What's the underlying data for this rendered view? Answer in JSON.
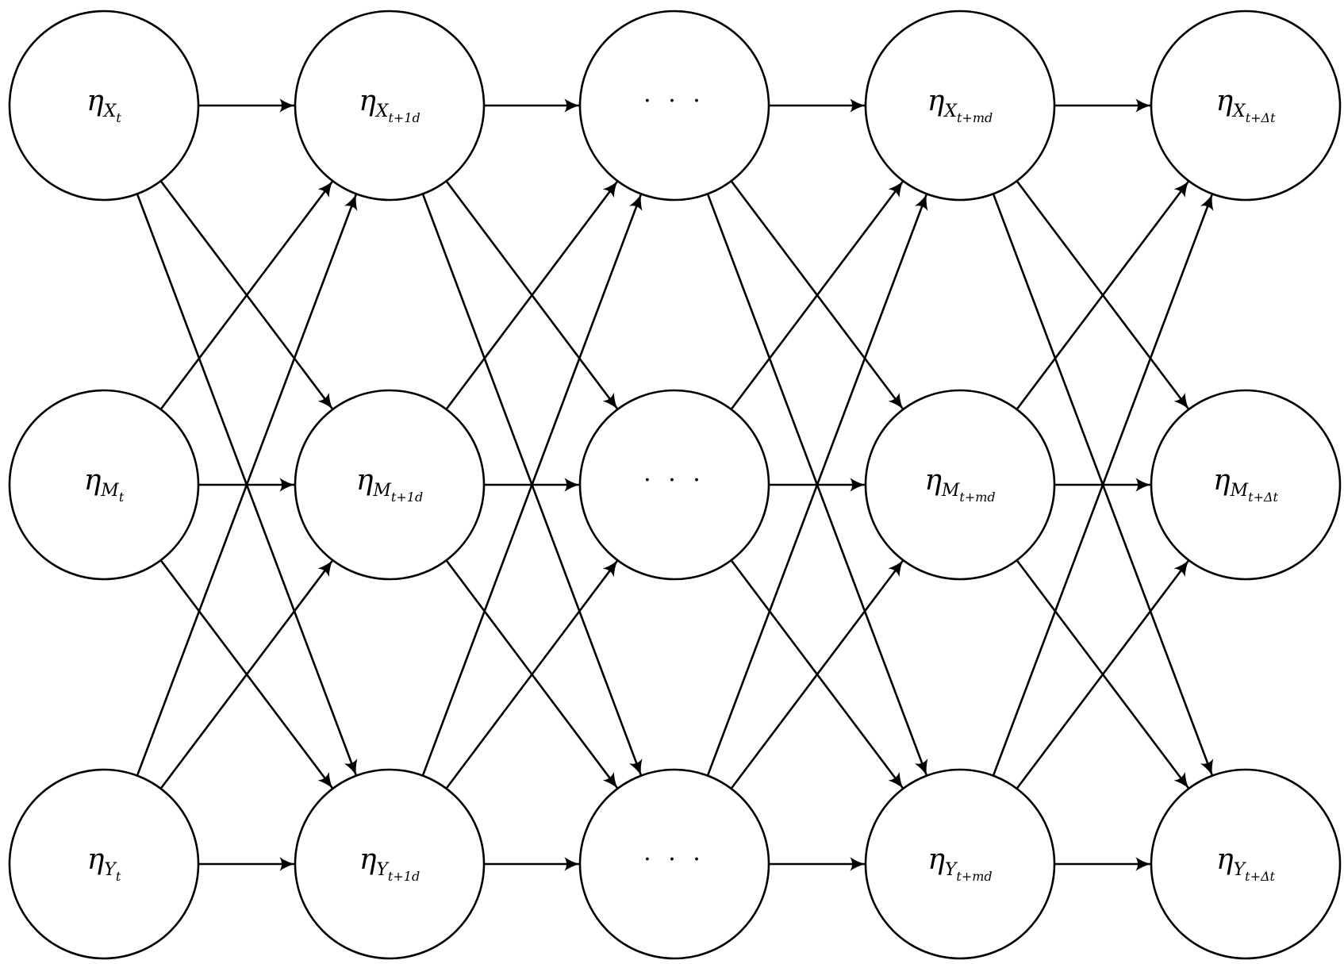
{
  "diagram": {
    "nodes": [
      {
        "id": "x0",
        "row": 0,
        "col": 0,
        "symbol": "η",
        "var": "X",
        "time": "t"
      },
      {
        "id": "x1",
        "row": 0,
        "col": 1,
        "symbol": "η",
        "var": "X",
        "time": "t+1d"
      },
      {
        "id": "x2",
        "row": 0,
        "col": 2,
        "text": "· · ·"
      },
      {
        "id": "x3",
        "row": 0,
        "col": 3,
        "symbol": "η",
        "var": "X",
        "time": "t+md"
      },
      {
        "id": "x4",
        "row": 0,
        "col": 4,
        "symbol": "η",
        "var": "X",
        "time": "t+Δt"
      },
      {
        "id": "m0",
        "row": 1,
        "col": 0,
        "symbol": "η",
        "var": "M",
        "time": "t"
      },
      {
        "id": "m1",
        "row": 1,
        "col": 1,
        "symbol": "η",
        "var": "M",
        "time": "t+1d"
      },
      {
        "id": "m2",
        "row": 1,
        "col": 2,
        "text": "· · ·"
      },
      {
        "id": "m3",
        "row": 1,
        "col": 3,
        "symbol": "η",
        "var": "M",
        "time": "t+md"
      },
      {
        "id": "m4",
        "row": 1,
        "col": 4,
        "symbol": "η",
        "var": "M",
        "time": "t+Δt"
      },
      {
        "id": "y0",
        "row": 2,
        "col": 0,
        "symbol": "η",
        "var": "Y",
        "time": "t"
      },
      {
        "id": "y1",
        "row": 2,
        "col": 1,
        "symbol": "η",
        "var": "Y",
        "time": "t+1d"
      },
      {
        "id": "y2",
        "row": 2,
        "col": 2,
        "text": "· · ·"
      },
      {
        "id": "y3",
        "row": 2,
        "col": 3,
        "symbol": "η",
        "var": "Y",
        "time": "t+md"
      },
      {
        "id": "y4",
        "row": 2,
        "col": 4,
        "symbol": "η",
        "var": "Y",
        "time": "t+Δt"
      }
    ],
    "edges": "all-to-all between consecutive columns",
    "arrow_color": "#000000"
  }
}
